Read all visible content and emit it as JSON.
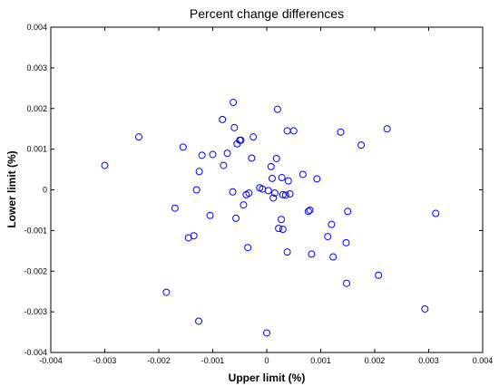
{
  "chart_data": {
    "type": "scatter",
    "title": "Percent change differences",
    "xlabel": "Upper limit (%)",
    "ylabel": "Lower limit (%)",
    "xlim": [
      -0.004,
      0.004
    ],
    "ylim": [
      -0.004,
      0.004
    ],
    "xticks": [
      "-0.004",
      "-0.003",
      "-0.002",
      "-0.001",
      "0",
      "0.001",
      "0.002",
      "0.003",
      "0.004"
    ],
    "yticks": [
      "-0.004",
      "-0.003",
      "-0.002",
      "-0.001",
      "0",
      "0.001",
      "0.002",
      "0.003",
      "0.004"
    ],
    "grid": false,
    "marker": "open-circle",
    "marker_color": "#0000ff",
    "points": [
      {
        "x": -0.003,
        "y": 0.0006
      },
      {
        "x": -0.00237,
        "y": 0.0013
      },
      {
        "x": -0.00186,
        "y": -0.00252
      },
      {
        "x": -0.0017,
        "y": -0.00045
      },
      {
        "x": -0.00155,
        "y": 0.00105
      },
      {
        "x": -0.00145,
        "y": -0.00118
      },
      {
        "x": -0.00135,
        "y": -0.00113
      },
      {
        "x": -0.0013,
        "y": 0.0
      },
      {
        "x": -0.00126,
        "y": -0.00323
      },
      {
        "x": -0.00125,
        "y": 0.00045
      },
      {
        "x": -0.0012,
        "y": 0.00085
      },
      {
        "x": -0.00105,
        "y": -0.00063
      },
      {
        "x": -0.001,
        "y": 0.00087
      },
      {
        "x": -0.00082,
        "y": 0.00173
      },
      {
        "x": -0.0008,
        "y": 0.0006
      },
      {
        "x": -0.00073,
        "y": 0.0009
      },
      {
        "x": -0.00063,
        "y": -5e-05
      },
      {
        "x": -0.00062,
        "y": 0.00215
      },
      {
        "x": -0.0006,
        "y": 0.00153
      },
      {
        "x": -0.00057,
        "y": -0.0007
      },
      {
        "x": -0.00055,
        "y": 0.00113
      },
      {
        "x": -0.0005,
        "y": 0.00122
      },
      {
        "x": -0.00048,
        "y": 0.00122
      },
      {
        "x": -0.00043,
        "y": -0.00037
      },
      {
        "x": -0.00038,
        "y": -0.00012
      },
      {
        "x": -0.00035,
        "y": -0.00142
      },
      {
        "x": -0.00033,
        "y": -8e-05
      },
      {
        "x": -0.00028,
        "y": 0.00078
      },
      {
        "x": -0.00025,
        "y": 0.0013
      },
      {
        "x": -0.00013,
        "y": 5e-05
      },
      {
        "x": -8e-05,
        "y": 2e-05
      },
      {
        "x": 0.0,
        "y": -0.00352
      },
      {
        "x": 3e-05,
        "y": -2e-05
      },
      {
        "x": 8e-05,
        "y": 0.00057
      },
      {
        "x": 0.0001,
        "y": 0.00028
      },
      {
        "x": 0.00012,
        "y": -0.0002
      },
      {
        "x": 0.00015,
        "y": -8e-05
      },
      {
        "x": 0.00018,
        "y": 0.00077
      },
      {
        "x": 0.0002,
        "y": 0.00198
      },
      {
        "x": 0.00022,
        "y": -0.00095
      },
      {
        "x": 0.00027,
        "y": -0.00073
      },
      {
        "x": 0.00028,
        "y": 0.0003
      },
      {
        "x": 0.0003,
        "y": -0.00097
      },
      {
        "x": 0.0003,
        "y": -0.00012
      },
      {
        "x": 0.00035,
        "y": -0.00013
      },
      {
        "x": 0.00038,
        "y": 0.00145
      },
      {
        "x": 0.0004,
        "y": 0.00022
      },
      {
        "x": 0.00043,
        "y": -0.0001
      },
      {
        "x": 0.0005,
        "y": 0.00145
      },
      {
        "x": 0.00038,
        "y": -0.00153
      },
      {
        "x": 0.00067,
        "y": 0.00038
      },
      {
        "x": 0.00077,
        "y": -0.00053
      },
      {
        "x": 0.0008,
        "y": -0.0005
      },
      {
        "x": 0.00083,
        "y": -0.00158
      },
      {
        "x": 0.00093,
        "y": 0.00027
      },
      {
        "x": 0.00113,
        "y": -0.00115
      },
      {
        "x": 0.0012,
        "y": -0.00085
      },
      {
        "x": 0.00123,
        "y": -0.00165
      },
      {
        "x": 0.00137,
        "y": 0.00142
      },
      {
        "x": 0.00147,
        "y": -0.0013
      },
      {
        "x": 0.00148,
        "y": -0.0023
      },
      {
        "x": 0.0015,
        "y": -0.00053
      },
      {
        "x": 0.00175,
        "y": 0.0011
      },
      {
        "x": 0.00207,
        "y": -0.0021
      },
      {
        "x": 0.00223,
        "y": 0.0015
      },
      {
        "x": 0.00293,
        "y": -0.00293
      },
      {
        "x": 0.00313,
        "y": -0.00058
      }
    ]
  }
}
